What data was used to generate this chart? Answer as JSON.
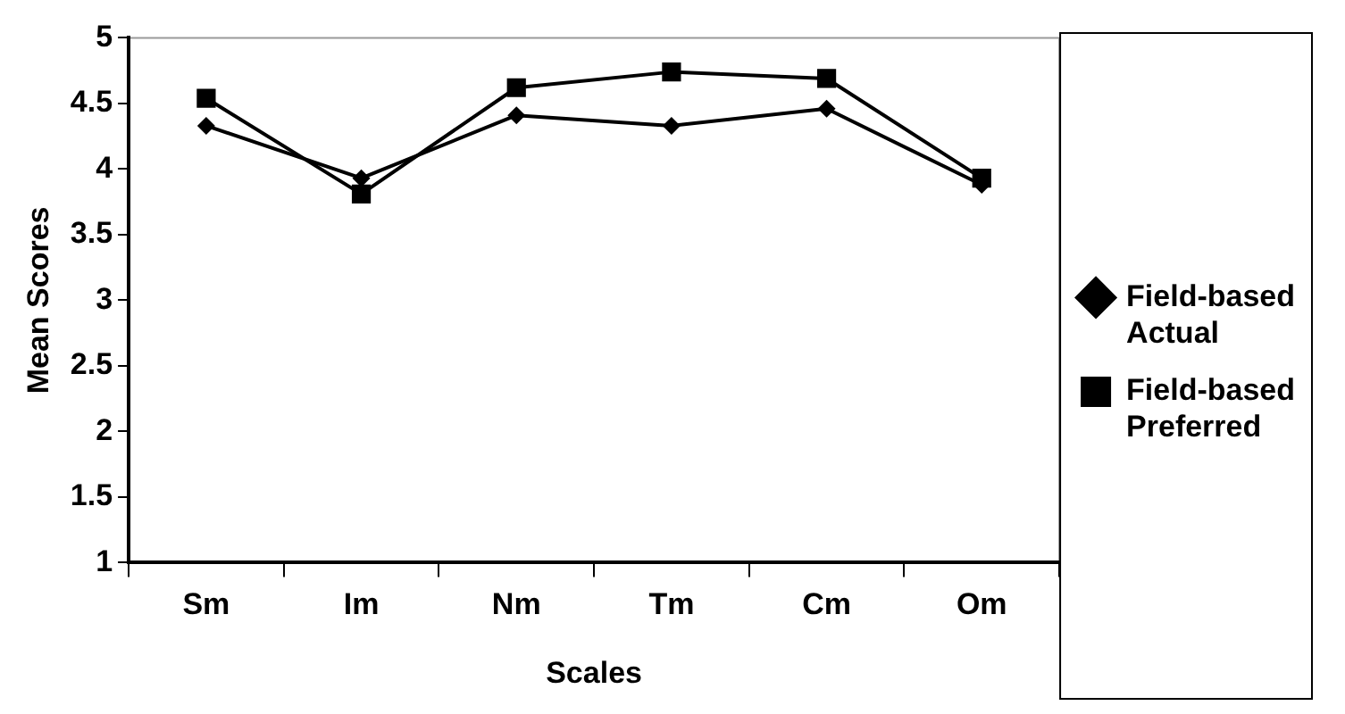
{
  "chart_data": {
    "type": "line",
    "xlabel": "Scales",
    "ylabel": "Mean Scores",
    "categories": [
      "Sm",
      "Im",
      "Nm",
      "Tm",
      "Cm",
      "Om"
    ],
    "series": [
      {
        "name": "Field-based Actual",
        "color": "#000000",
        "marker": "diamond",
        "values": [
          4.33,
          3.93,
          4.41,
          4.33,
          4.46,
          3.88
        ]
      },
      {
        "name": "Field-based Preferred",
        "color": "#000000",
        "marker": "square",
        "values": [
          4.54,
          3.81,
          4.62,
          4.74,
          4.69,
          3.93
        ]
      }
    ],
    "ylim": [
      1,
      5
    ],
    "yticks": [
      1,
      1.5,
      2,
      2.5,
      3,
      3.5,
      4,
      4.5,
      5
    ],
    "grid": false,
    "legend": "right"
  }
}
